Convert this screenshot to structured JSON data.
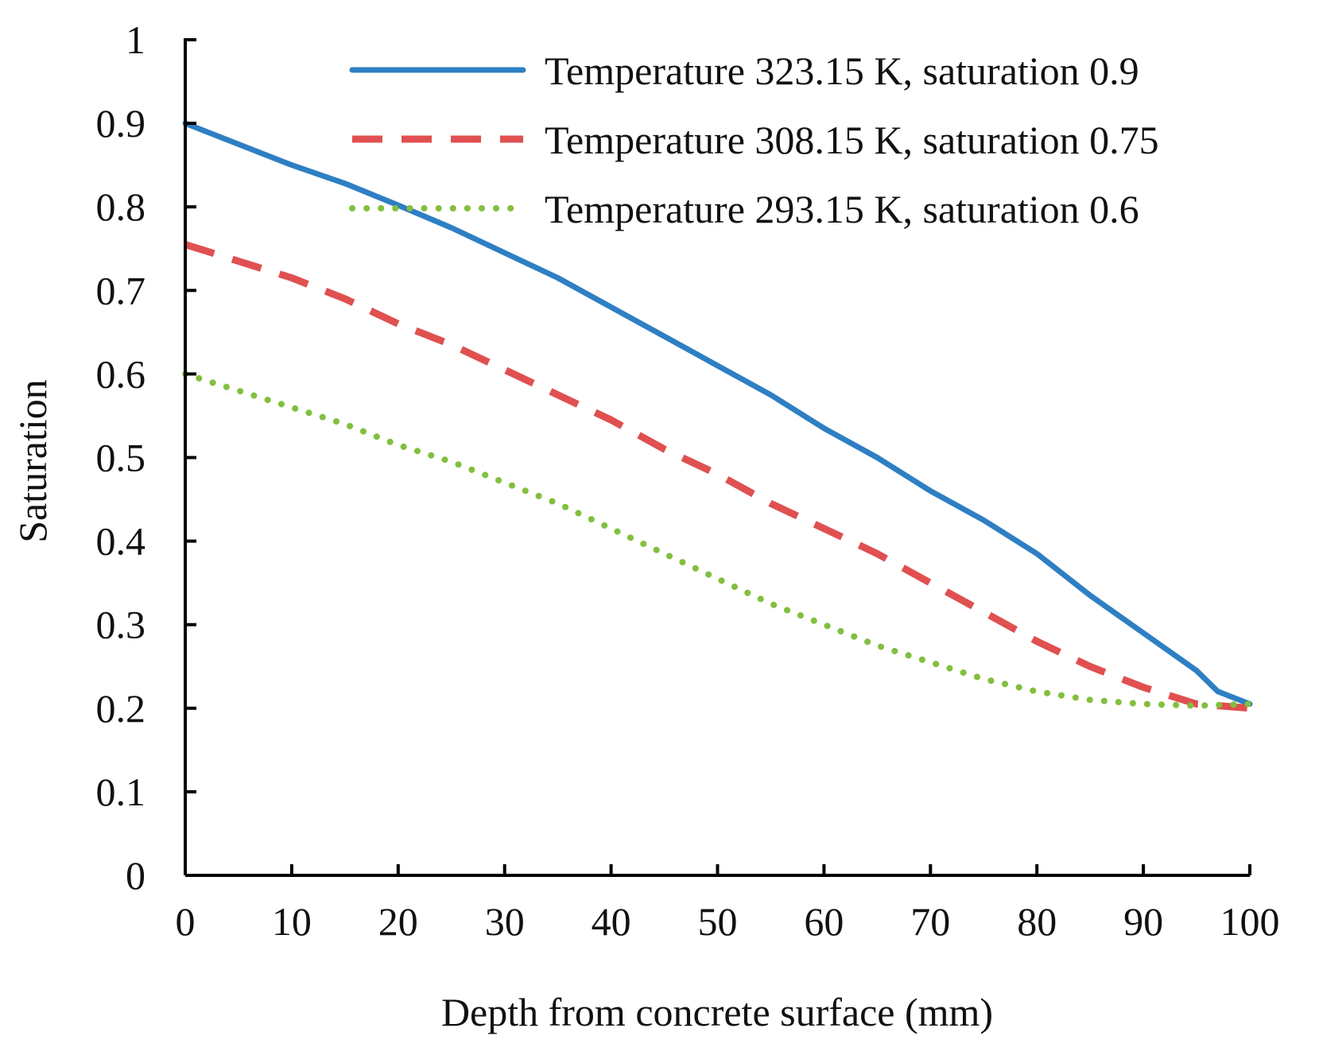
{
  "chart_data": {
    "type": "line",
    "title": "",
    "xlabel": "Depth from concrete surface (mm)",
    "ylabel": "Saturation",
    "xlim": [
      0,
      100
    ],
    "ylim": [
      0,
      1
    ],
    "xticks": [
      0,
      10,
      20,
      30,
      40,
      50,
      60,
      70,
      80,
      90,
      100
    ],
    "yticks": [
      0,
      0.1,
      0.2,
      0.3,
      0.4,
      0.5,
      0.6,
      0.7,
      0.8,
      0.9,
      1
    ],
    "xtick_labels": [
      "0",
      "10",
      "20",
      "30",
      "40",
      "50",
      "60",
      "70",
      "80",
      "90",
      "100"
    ],
    "ytick_labels": [
      "0",
      "0.1",
      "0.2",
      "0.3",
      "0.4",
      "0.5",
      "0.6",
      "0.7",
      "0.8",
      "0.9",
      "1"
    ],
    "grid": false,
    "legend_position": "top-right",
    "series": [
      {
        "name": "Temperature 323.15 K, saturation 0.9",
        "color": "#2e7fc3",
        "style": "solid",
        "x": [
          0,
          5,
          10,
          15,
          20,
          25,
          30,
          35,
          40,
          45,
          50,
          55,
          60,
          65,
          70,
          75,
          80,
          85,
          90,
          95,
          97,
          100
        ],
        "y": [
          0.9,
          0.875,
          0.85,
          0.828,
          0.802,
          0.775,
          0.745,
          0.715,
          0.68,
          0.645,
          0.61,
          0.575,
          0.535,
          0.5,
          0.46,
          0.425,
          0.385,
          0.335,
          0.29,
          0.245,
          0.22,
          0.205
        ]
      },
      {
        "name": "Temperature 308.15 K, saturation 0.75",
        "color": "#e05050",
        "style": "dashed",
        "x": [
          0,
          5,
          10,
          15,
          20,
          25,
          30,
          35,
          40,
          45,
          50,
          55,
          60,
          65,
          70,
          75,
          80,
          85,
          90,
          95,
          100
        ],
        "y": [
          0.755,
          0.735,
          0.715,
          0.69,
          0.66,
          0.635,
          0.605,
          0.575,
          0.545,
          0.51,
          0.48,
          0.445,
          0.415,
          0.385,
          0.35,
          0.315,
          0.28,
          0.25,
          0.225,
          0.205,
          0.2
        ]
      },
      {
        "name": "Temperature 293.15 K, saturation 0.6",
        "color": "#82bf3f",
        "style": "dotted",
        "x": [
          0,
          5,
          10,
          15,
          20,
          25,
          30,
          35,
          40,
          45,
          50,
          55,
          60,
          65,
          70,
          75,
          80,
          85,
          90,
          95,
          100
        ],
        "y": [
          0.6,
          0.58,
          0.56,
          0.54,
          0.515,
          0.495,
          0.47,
          0.445,
          0.415,
          0.385,
          0.355,
          0.325,
          0.3,
          0.275,
          0.255,
          0.235,
          0.22,
          0.21,
          0.205,
          0.203,
          0.205
        ]
      }
    ]
  }
}
